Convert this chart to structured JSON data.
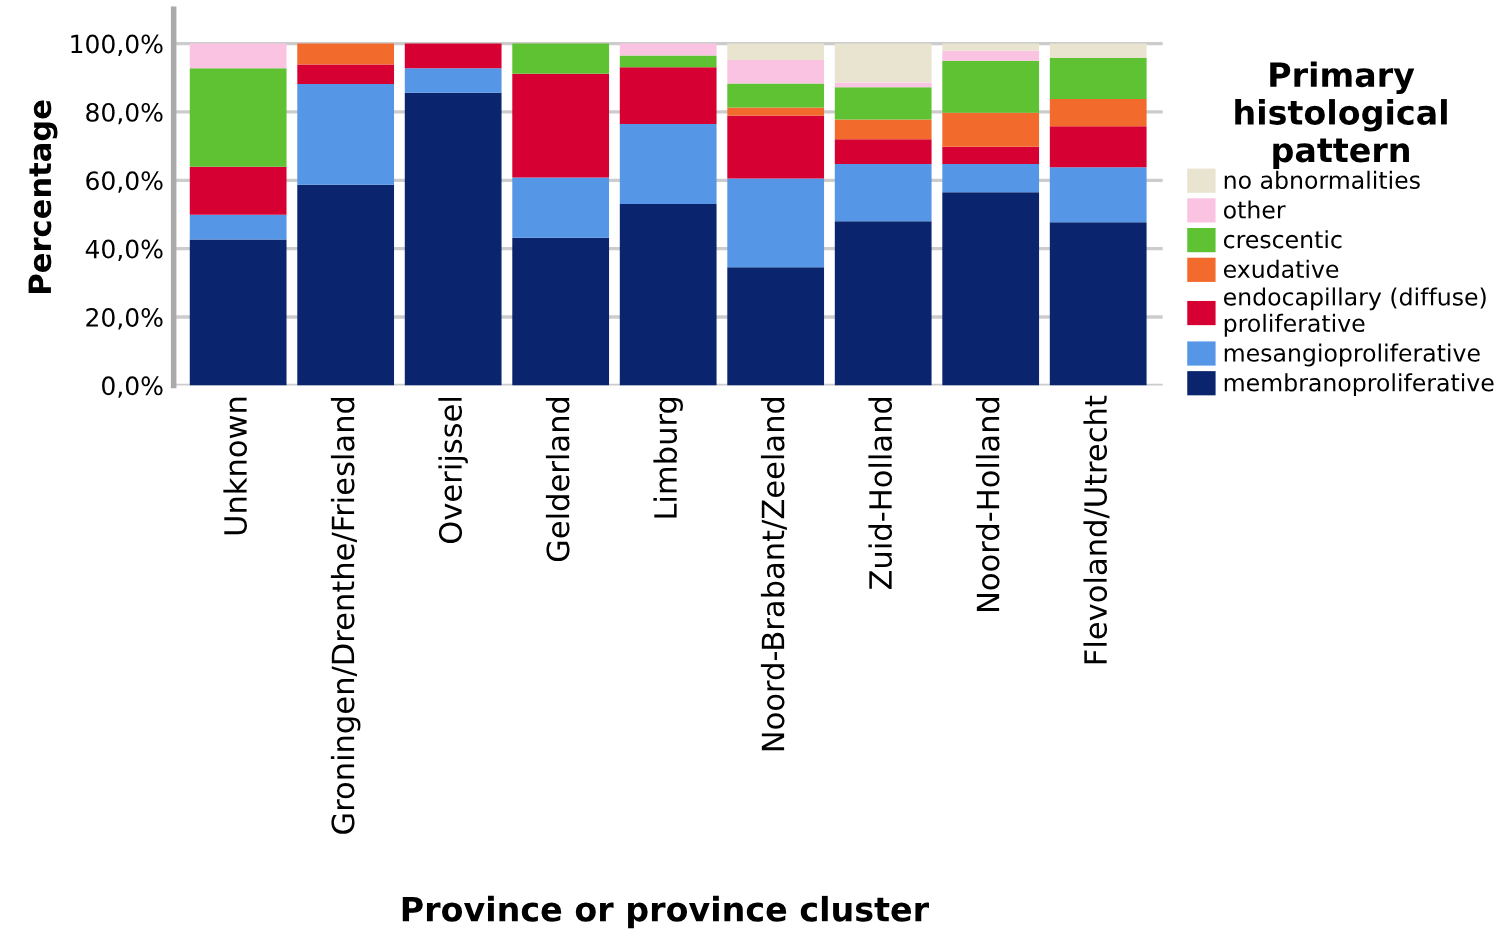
{
  "chart_data": {
    "type": "bar",
    "stacked": true,
    "xlabel": "Province or province cluster",
    "ylabel": "Percentage",
    "legend_title": "Primary histological pattern",
    "categories": [
      "Unknown",
      "Groningen/Drenthe/Friesland",
      "Overijssel",
      "Gelderland",
      "Limburg",
      "Noord-Brabant/Zeeland",
      "Zuid-Holland",
      "Noord-Holland",
      "Flevoland/Utrecht"
    ],
    "series": [
      {
        "name": "membranoproliferative",
        "color": "#0a246e",
        "values": [
          42.7,
          58.7,
          85.6,
          43.2,
          53.1,
          34.6,
          48.0,
          56.5,
          47.7
        ]
      },
      {
        "name": "mesangioproliferative",
        "color": "#5596e6",
        "values": [
          7.2,
          29.5,
          7.2,
          17.6,
          23.4,
          25.9,
          16.8,
          8.3,
          16.1
        ]
      },
      {
        "name": "endocapillary (diffuse)\nproliferative",
        "color": "#d70032",
        "values": [
          14.1,
          5.7,
          7.2,
          30.4,
          16.6,
          18.4,
          7.2,
          5.0,
          12.0
        ]
      },
      {
        "name": "exudative",
        "color": "#f26a2c",
        "values": [
          0,
          6.1,
          0,
          0,
          0,
          2.4,
          5.8,
          10.0,
          8.0
        ]
      },
      {
        "name": "crescentic",
        "color": "#5ec232",
        "values": [
          28.8,
          0,
          0,
          8.8,
          3.4,
          7.0,
          9.4,
          15.2,
          12.0
        ]
      },
      {
        "name": "other",
        "color": "#fbc3e2",
        "values": [
          7.2,
          0,
          0,
          0,
          3.5,
          6.9,
          1.4,
          2.9,
          0
        ]
      },
      {
        "name": "no abnormalities",
        "color": "#e8e4d0",
        "values": [
          0,
          0,
          0,
          0,
          0,
          4.8,
          11.4,
          2.1,
          4.2
        ]
      }
    ],
    "ylim": [
      0,
      110
    ],
    "yticks": [
      {
        "value": 0,
        "label": "0,0%"
      },
      {
        "value": 20,
        "label": "20,0%"
      },
      {
        "value": 40,
        "label": "40,0%"
      },
      {
        "value": 60,
        "label": "60,0%"
      },
      {
        "value": 80,
        "label": "80,0%"
      },
      {
        "value": 100,
        "label": "100,0%"
      }
    ],
    "grid": "y",
    "legend": "right"
  }
}
